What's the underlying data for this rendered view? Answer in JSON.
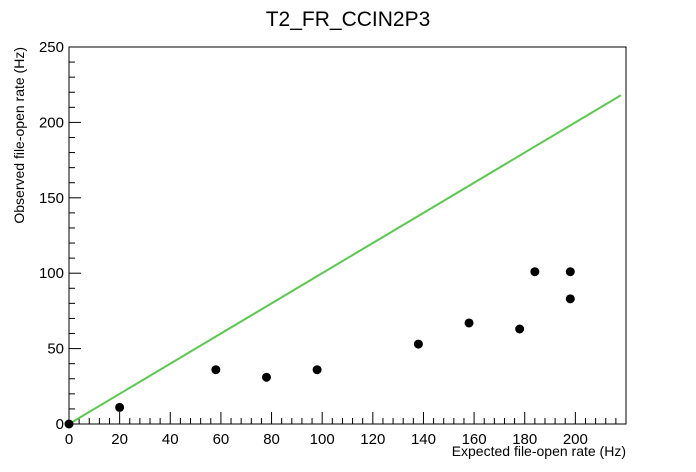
{
  "chart_data": {
    "type": "scatter",
    "title": "T2_FR_CCIN2P3",
    "xlabel": "Expected file-open rate (Hz)",
    "ylabel": "Observed file-open rate (Hz)",
    "xlim": [
      0,
      220
    ],
    "ylim": [
      0,
      250
    ],
    "x_ticks": [
      "0",
      "20",
      "40",
      "60",
      "80",
      "100",
      "120",
      "140",
      "160",
      "180",
      "200"
    ],
    "y_ticks": [
      "0",
      "50",
      "100",
      "150",
      "200",
      "250"
    ],
    "grid": false,
    "series": [
      {
        "points": [
          {
            "x": 0,
            "y": 0
          },
          {
            "x": 20,
            "y": 11
          },
          {
            "x": 58,
            "y": 36
          },
          {
            "x": 78,
            "y": 31
          },
          {
            "x": 98,
            "y": 36
          },
          {
            "x": 138,
            "y": 53
          },
          {
            "x": 158,
            "y": 67
          },
          {
            "x": 178,
            "y": 63
          },
          {
            "x": 184,
            "y": 101
          },
          {
            "x": 198,
            "y": 101
          },
          {
            "x": 198,
            "y": 83
          }
        ],
        "color": "#000000"
      }
    ],
    "reference_line": {
      "x": [
        0,
        218
      ],
      "y": [
        0,
        218
      ],
      "color": "#5bc84f"
    }
  }
}
